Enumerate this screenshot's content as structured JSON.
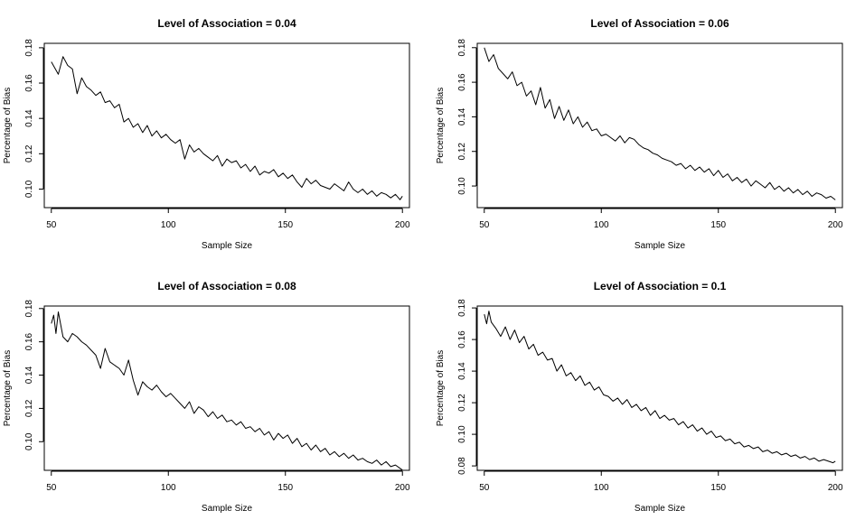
{
  "chart_data": [
    {
      "type": "line",
      "title": "Level of Association = 0.04",
      "xlabel": "Sample Size",
      "ylabel": "Percentage of Bias",
      "xlim": [
        47,
        203
      ],
      "ylim": [
        0.0895,
        0.1825
      ],
      "xticks": [
        50,
        100,
        150,
        200
      ],
      "yticks": [
        0.1,
        0.12,
        0.14,
        0.16,
        0.18
      ],
      "ytick_labels": [
        "0.10",
        "0.12",
        "0.14",
        "0.16",
        "0.18"
      ],
      "x": [
        50,
        53,
        55,
        57,
        59,
        61,
        63,
        65,
        67,
        69,
        71,
        73,
        75,
        77,
        79,
        81,
        83,
        85,
        87,
        89,
        91,
        93,
        95,
        97,
        99,
        101,
        103,
        105,
        107,
        109,
        111,
        113,
        115,
        117,
        119,
        121,
        123,
        125,
        127,
        129,
        131,
        133,
        135,
        137,
        139,
        141,
        143,
        145,
        147,
        149,
        151,
        153,
        155,
        157,
        159,
        161,
        163,
        165,
        167,
        169,
        171,
        173,
        175,
        177,
        179,
        181,
        183,
        185,
        187,
        189,
        191,
        193,
        195,
        197,
        199,
        200
      ],
      "values": [
        0.172,
        0.165,
        0.175,
        0.17,
        0.168,
        0.154,
        0.163,
        0.158,
        0.156,
        0.153,
        0.155,
        0.149,
        0.15,
        0.146,
        0.148,
        0.138,
        0.14,
        0.135,
        0.137,
        0.132,
        0.136,
        0.13,
        0.133,
        0.129,
        0.131,
        0.128,
        0.126,
        0.128,
        0.117,
        0.125,
        0.121,
        0.123,
        0.12,
        0.118,
        0.116,
        0.119,
        0.113,
        0.117,
        0.115,
        0.116,
        0.112,
        0.114,
        0.11,
        0.113,
        0.108,
        0.11,
        0.109,
        0.111,
        0.107,
        0.109,
        0.106,
        0.108,
        0.104,
        0.101,
        0.106,
        0.103,
        0.105,
        0.102,
        0.101,
        0.1,
        0.103,
        0.101,
        0.099,
        0.104,
        0.1,
        0.098,
        0.1,
        0.097,
        0.099,
        0.096,
        0.098,
        0.097,
        0.095,
        0.097,
        0.094,
        0.096
      ],
      "grid": false
    },
    {
      "type": "line",
      "title": "Level of Association = 0.06",
      "xlabel": "Sample Size",
      "ylabel": "Percentage of Bias",
      "xlim": [
        47,
        203
      ],
      "ylim": [
        0.0875,
        0.1825
      ],
      "xticks": [
        50,
        100,
        150,
        200
      ],
      "yticks": [
        0.1,
        0.12,
        0.14,
        0.16,
        0.18
      ],
      "ytick_labels": [
        "0.10",
        "0.12",
        "0.14",
        "0.16",
        "0.18"
      ],
      "x": [
        50,
        52,
        54,
        56,
        58,
        60,
        62,
        64,
        66,
        68,
        70,
        72,
        74,
        76,
        78,
        80,
        82,
        84,
        86,
        88,
        90,
        92,
        94,
        96,
        98,
        100,
        102,
        104,
        106,
        108,
        110,
        112,
        114,
        116,
        118,
        120,
        122,
        124,
        126,
        128,
        130,
        132,
        134,
        136,
        138,
        140,
        142,
        144,
        146,
        148,
        150,
        152,
        154,
        156,
        158,
        160,
        162,
        164,
        166,
        168,
        170,
        172,
        174,
        176,
        178,
        180,
        182,
        184,
        186,
        188,
        190,
        192,
        194,
        196,
        198,
        200
      ],
      "values": [
        0.18,
        0.172,
        0.176,
        0.168,
        0.165,
        0.162,
        0.166,
        0.158,
        0.16,
        0.152,
        0.155,
        0.147,
        0.157,
        0.145,
        0.15,
        0.139,
        0.146,
        0.138,
        0.144,
        0.136,
        0.14,
        0.134,
        0.137,
        0.132,
        0.133,
        0.129,
        0.13,
        0.128,
        0.126,
        0.129,
        0.125,
        0.128,
        0.127,
        0.124,
        0.122,
        0.121,
        0.119,
        0.118,
        0.116,
        0.115,
        0.114,
        0.112,
        0.113,
        0.11,
        0.112,
        0.109,
        0.111,
        0.108,
        0.11,
        0.106,
        0.109,
        0.105,
        0.107,
        0.103,
        0.105,
        0.102,
        0.104,
        0.1,
        0.103,
        0.101,
        0.099,
        0.102,
        0.098,
        0.1,
        0.097,
        0.099,
        0.096,
        0.098,
        0.095,
        0.097,
        0.094,
        0.096,
        0.095,
        0.093,
        0.094,
        0.092
      ],
      "grid": false
    },
    {
      "type": "line",
      "title": "Level of Association = 0.08",
      "xlabel": "Sample Size",
      "ylabel": "Percentage of Bias",
      "xlim": [
        47,
        203
      ],
      "ylim": [
        0.0828,
        0.1815
      ],
      "xticks": [
        50,
        100,
        150,
        200
      ],
      "yticks": [
        0.1,
        0.12,
        0.14,
        0.16,
        0.18
      ],
      "ytick_labels": [
        "0.10",
        "0.12",
        "0.14",
        "0.16",
        "0.18"
      ],
      "x": [
        50,
        51,
        52,
        53,
        55,
        57,
        59,
        61,
        63,
        65,
        67,
        69,
        71,
        73,
        75,
        77,
        79,
        81,
        83,
        85,
        87,
        89,
        91,
        93,
        95,
        97,
        99,
        101,
        103,
        105,
        107,
        109,
        111,
        113,
        115,
        117,
        119,
        121,
        123,
        125,
        127,
        129,
        131,
        133,
        135,
        137,
        139,
        141,
        143,
        145,
        147,
        149,
        151,
        153,
        155,
        157,
        159,
        161,
        163,
        165,
        167,
        169,
        171,
        173,
        175,
        177,
        179,
        181,
        183,
        185,
        187,
        189,
        191,
        193,
        195,
        197,
        199,
        200
      ],
      "values": [
        0.171,
        0.176,
        0.165,
        0.178,
        0.163,
        0.16,
        0.165,
        0.163,
        0.16,
        0.158,
        0.155,
        0.152,
        0.144,
        0.156,
        0.148,
        0.146,
        0.144,
        0.14,
        0.149,
        0.137,
        0.128,
        0.136,
        0.133,
        0.131,
        0.134,
        0.13,
        0.127,
        0.129,
        0.126,
        0.123,
        0.12,
        0.124,
        0.117,
        0.121,
        0.119,
        0.115,
        0.118,
        0.114,
        0.116,
        0.112,
        0.113,
        0.11,
        0.112,
        0.108,
        0.109,
        0.106,
        0.108,
        0.104,
        0.106,
        0.101,
        0.105,
        0.102,
        0.104,
        0.099,
        0.102,
        0.097,
        0.099,
        0.095,
        0.098,
        0.094,
        0.096,
        0.092,
        0.094,
        0.091,
        0.093,
        0.09,
        0.092,
        0.089,
        0.09,
        0.088,
        0.087,
        0.089,
        0.086,
        0.088,
        0.085,
        0.086,
        0.084,
        0.083
      ],
      "grid": false
    },
    {
      "type": "line",
      "title": "Level of Association = 0.1",
      "xlabel": "Sample Size",
      "ylabel": "Percentage of Bias",
      "xlim": [
        47,
        203
      ],
      "ylim": [
        0.0772,
        0.1812
      ],
      "xticks": [
        50,
        100,
        150,
        200
      ],
      "yticks": [
        0.08,
        0.1,
        0.12,
        0.14,
        0.16,
        0.18
      ],
      "ytick_labels": [
        "0.08",
        "0.10",
        "0.12",
        "0.14",
        "0.16",
        "0.18"
      ],
      "x": [
        50,
        51,
        52,
        53,
        55,
        57,
        59,
        61,
        63,
        65,
        67,
        69,
        71,
        73,
        75,
        77,
        79,
        81,
        83,
        85,
        87,
        89,
        91,
        93,
        95,
        97,
        99,
        101,
        103,
        105,
        107,
        109,
        111,
        113,
        115,
        117,
        119,
        121,
        123,
        125,
        127,
        129,
        131,
        133,
        135,
        137,
        139,
        141,
        143,
        145,
        147,
        149,
        151,
        153,
        155,
        157,
        159,
        161,
        163,
        165,
        167,
        169,
        171,
        173,
        175,
        177,
        179,
        181,
        183,
        185,
        187,
        189,
        191,
        193,
        195,
        197,
        199,
        200
      ],
      "values": [
        0.176,
        0.17,
        0.178,
        0.171,
        0.167,
        0.162,
        0.168,
        0.16,
        0.166,
        0.158,
        0.162,
        0.154,
        0.157,
        0.15,
        0.152,
        0.147,
        0.148,
        0.14,
        0.144,
        0.137,
        0.139,
        0.134,
        0.137,
        0.131,
        0.133,
        0.128,
        0.13,
        0.125,
        0.124,
        0.121,
        0.123,
        0.119,
        0.122,
        0.117,
        0.119,
        0.115,
        0.117,
        0.112,
        0.115,
        0.11,
        0.112,
        0.109,
        0.11,
        0.106,
        0.108,
        0.104,
        0.106,
        0.102,
        0.104,
        0.1,
        0.102,
        0.098,
        0.099,
        0.096,
        0.097,
        0.094,
        0.095,
        0.092,
        0.093,
        0.091,
        0.092,
        0.089,
        0.09,
        0.088,
        0.089,
        0.087,
        0.088,
        0.086,
        0.087,
        0.085,
        0.086,
        0.084,
        0.085,
        0.083,
        0.084,
        0.083,
        0.082,
        0.083
      ],
      "grid": false
    }
  ]
}
